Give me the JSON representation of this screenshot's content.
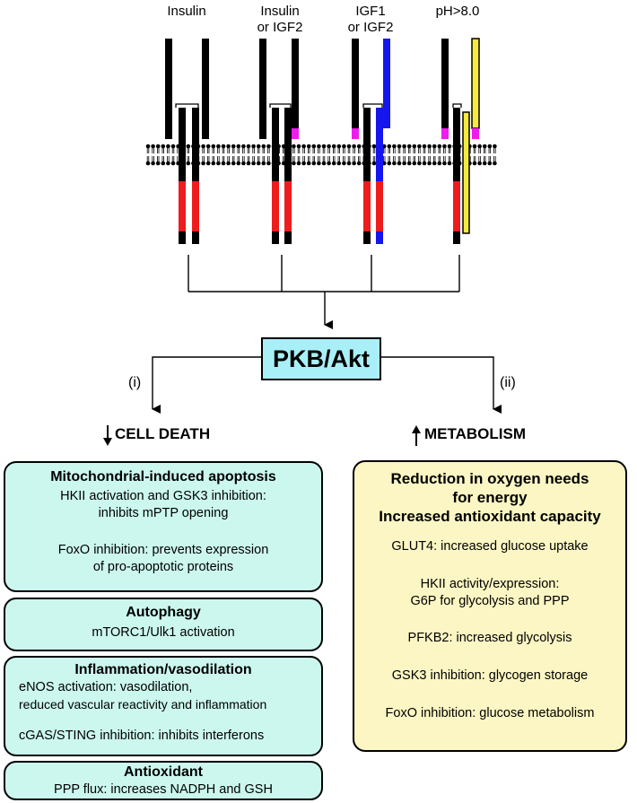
{
  "receptors": [
    {
      "label": "Insulin"
    },
    {
      "label": "Insulin\nor IGF2"
    },
    {
      "label": "IGF1\nor IGF2"
    },
    {
      "label": "pH>8.0"
    }
  ],
  "center": {
    "label": "PKB/Akt"
  },
  "branches": {
    "left": {
      "marker": "(i)",
      "heading": "CELL DEATH"
    },
    "right": {
      "marker": "(ii)",
      "heading": "METABOLISM"
    }
  },
  "left_boxes": [
    {
      "title": "Mitochondrial-induced apoptosis",
      "lines": [
        "HKII activation and GSK3 inhibition:",
        "inhibits mPTP opening",
        "",
        "FoxO inhibition: prevents expression",
        "of pro-apoptotic proteins"
      ]
    },
    {
      "title": "Autophagy",
      "lines": [
        "mTORC1/Ulk1 activation"
      ]
    },
    {
      "title": "Inflammation/vasodilation",
      "lines": [
        "eNOS activation: vasodilation,",
        "reduced vascular reactivity and inflammation",
        "",
        "cGAS/STING inhibition: inhibits interferons"
      ]
    },
    {
      "title": "Antioxidant",
      "lines": [
        "PPP flux: increases NADPH and GSH"
      ]
    }
  ],
  "right_box": {
    "titles": [
      "Reduction in oxygen needs",
      "for energy",
      "Increased antioxidant capacity"
    ],
    "items": [
      [
        "GLUT4: increased glucose uptake"
      ],
      [
        "HKII activity/expression:",
        "G6P for glycolysis and PPP"
      ],
      [
        "PFKB2: increased glycolysis"
      ],
      [
        "GSK3 inhibition: glycogen storage"
      ],
      [
        "FoxO inhibition: glucose metabolism"
      ]
    ]
  },
  "colors": {
    "black": "#000000",
    "red": "#ee1c1c",
    "blue": "#1515ee",
    "magenta": "#ee1cee",
    "yellow": "#f5e93c",
    "akt_fill": "#a9eff7",
    "teal_box": "#ccf7ee",
    "yellow_box": "#fbf6c3"
  }
}
